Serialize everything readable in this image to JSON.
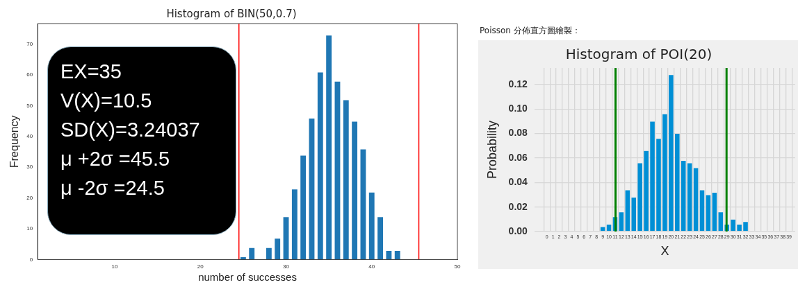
{
  "chart_data": [
    {
      "type": "bar",
      "title": "Histogram of BIN(50,0.7)",
      "xlabel": "number of successes",
      "ylabel": "Frequency",
      "x": [
        25,
        26,
        28,
        29,
        30,
        31,
        32,
        33,
        34,
        35,
        36,
        37,
        38,
        39,
        40,
        41,
        42,
        43
      ],
      "values": [
        1,
        4,
        4,
        7,
        14,
        23,
        34,
        46,
        61,
        73,
        58,
        52,
        45,
        36,
        22,
        14,
        3,
        3
      ],
      "color": "#1f77b4",
      "xlim": [
        1,
        50
      ],
      "xticks": [
        10,
        20,
        30,
        40,
        50
      ],
      "ylim": [
        0,
        76.65
      ],
      "yticks": [
        0,
        10,
        20,
        30,
        40,
        50,
        60,
        70
      ],
      "grid": false,
      "legend": false,
      "ref_lines": [
        {
          "axis": "x",
          "value": 24.5,
          "color": "#ff0000"
        },
        {
          "axis": "x",
          "value": 45.5,
          "color": "#ff0000"
        }
      ],
      "annotations": [
        "EX=35",
        "V(X)=10.5",
        "SD(X)=3.24037",
        "μ +2σ =45.5",
        "μ -2σ =24.5"
      ]
    },
    {
      "type": "bar",
      "title": "Histogram of POI(20)",
      "xlabel": "X",
      "ylabel": "Probability",
      "x": [
        0,
        1,
        2,
        3,
        4,
        5,
        6,
        7,
        8,
        9,
        10,
        11,
        12,
        13,
        14,
        15,
        16,
        17,
        18,
        19,
        20,
        21,
        22,
        23,
        24,
        25,
        26,
        27,
        28,
        29,
        30,
        31,
        32,
        33,
        34,
        35,
        36,
        37,
        38,
        39
      ],
      "values": [
        0,
        0,
        0,
        0,
        0,
        0,
        0,
        0,
        0,
        0.004,
        0.006,
        0.012,
        0.016,
        0.034,
        0.028,
        0.056,
        0.066,
        0.09,
        0.076,
        0.096,
        0.128,
        0.08,
        0.058,
        0.056,
        0.052,
        0.034,
        0.03,
        0.032,
        0.016,
        0.006,
        0.01,
        0.006,
        0.008,
        0,
        0,
        0,
        0,
        0,
        0,
        0
      ],
      "color": "#008fd5",
      "xlim": [
        -2,
        40
      ],
      "xticks": [
        0,
        1,
        2,
        3,
        4,
        5,
        6,
        7,
        8,
        9,
        10,
        11,
        12,
        13,
        14,
        15,
        16,
        17,
        18,
        19,
        20,
        21,
        22,
        23,
        24,
        25,
        26,
        27,
        28,
        29,
        30,
        31,
        32,
        33,
        34,
        35,
        36,
        37,
        38,
        39
      ],
      "ylim": [
        0,
        0.1335
      ],
      "yticks": [
        {
          "value": 0,
          "label": "0.00"
        },
        {
          "value": 0.02,
          "label": "0.02"
        },
        {
          "value": 0.04,
          "label": "0.04"
        },
        {
          "value": 0.06,
          "label": "0.06"
        },
        {
          "value": 0.08,
          "label": "0.08"
        },
        {
          "value": 0.1,
          "label": "0.10"
        },
        {
          "value": 0.12,
          "label": "0.12"
        }
      ],
      "grid": true,
      "legend": false,
      "ref_lines": [
        {
          "axis": "x",
          "value": 11.06,
          "color": "#008000"
        },
        {
          "axis": "x",
          "value": 28.94,
          "color": "#008000"
        }
      ],
      "annotations": [
        "Poisson 分佈直方圖繪製："
      ]
    }
  ]
}
